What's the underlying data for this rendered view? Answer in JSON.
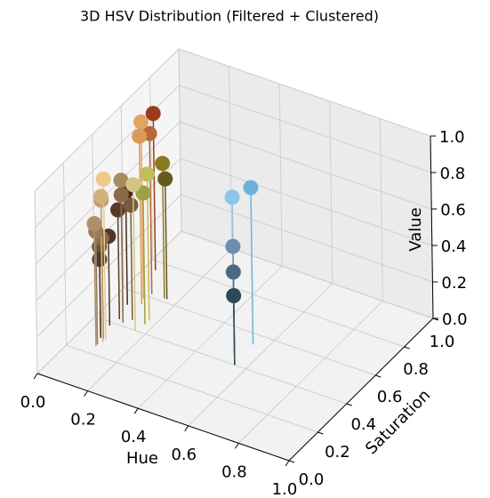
{
  "chart_data": {
    "type": "scatter3d",
    "title": "3D HSV Distribution (Filtered + Clustered)",
    "xlabel": "Hue",
    "ylabel": "Saturation",
    "zlabel": "Value",
    "x": [
      0.09,
      0.1,
      0.1,
      0.04,
      0.1,
      0.1,
      0.16,
      0.17,
      0.1,
      0.09,
      0.17,
      0.15,
      0.1,
      0.12,
      0.09,
      0.09,
      0.16,
      0.08,
      0.06,
      0.09,
      0.08,
      0.07,
      0.08,
      0.555,
      0.548,
      0.555,
      0.555,
      0.555
    ],
    "y": [
      0.58,
      0.55,
      0.62,
      0.75,
      0.3,
      0.28,
      0.4,
      0.48,
      0.42,
      0.3,
      0.45,
      0.62,
      0.42,
      0.45,
      0.25,
      0.26,
      0.62,
      0.43,
      0.52,
      0.3,
      0.3,
      0.38,
      0.3,
      0.4,
      0.54,
      0.4,
      0.4,
      0.4
    ],
    "z": [
      0.97,
      0.92,
      0.88,
      0.86,
      0.88,
      0.8,
      0.8,
      0.8,
      0.78,
      0.76,
      0.72,
      0.74,
      0.7,
      0.63,
      0.67,
      0.62,
      0.66,
      0.6,
      0.62,
      0.55,
      0.5,
      0.49,
      0.43,
      0.92,
      0.86,
      0.65,
      0.51,
      0.38
    ],
    "colors": [
      "#e3a462",
      "#d99a5a",
      "#b8683a",
      "#9c3c1c",
      "#edc98a",
      "#d4b07e",
      "#cfc682",
      "#bfbf5a",
      "#a88a60",
      "#c09870",
      "#a0a040",
      "#8a7a20",
      "#8a6a48",
      "#7a5a3a",
      "#b0906a",
      "#9a7a5a",
      "#655a18",
      "#5a3a26",
      "#4a2a1a",
      "#8a6a4a",
      "#6a503a",
      "#4e3626",
      "#4a3a2a",
      "#8ec4e6",
      "#6ab4dc",
      "#6a8eac",
      "#4a6a84",
      "#2e4858"
    ],
    "xlim": [
      0,
      1
    ],
    "ylim": [
      0,
      1
    ],
    "zlim": [
      0,
      1
    ],
    "xticks": [
      {
        "value": 0,
        "label": "0.0"
      },
      {
        "value": 0.2,
        "label": "0.2"
      },
      {
        "value": 0.4,
        "label": "0.4"
      },
      {
        "value": 0.6,
        "label": "0.6"
      },
      {
        "value": 0.8,
        "label": "0.8"
      },
      {
        "value": 1,
        "label": "1.0"
      }
    ],
    "yticks": [
      {
        "value": 0,
        "label": "0.0"
      },
      {
        "value": 0.2,
        "label": "0.2"
      },
      {
        "value": 0.4,
        "label": "0.4"
      },
      {
        "value": 0.6,
        "label": "0.6"
      },
      {
        "value": 0.8,
        "label": "0.8"
      },
      {
        "value": 1,
        "label": "1.0"
      }
    ],
    "zticks": [
      {
        "value": 0,
        "label": "0.0"
      },
      {
        "value": 0.2,
        "label": "0.2"
      },
      {
        "value": 0.4,
        "label": "0.4"
      },
      {
        "value": 0.6,
        "label": "0.6"
      },
      {
        "value": 0.8,
        "label": "0.8"
      },
      {
        "value": 1,
        "label": "1.0"
      }
    ],
    "grid": true
  }
}
